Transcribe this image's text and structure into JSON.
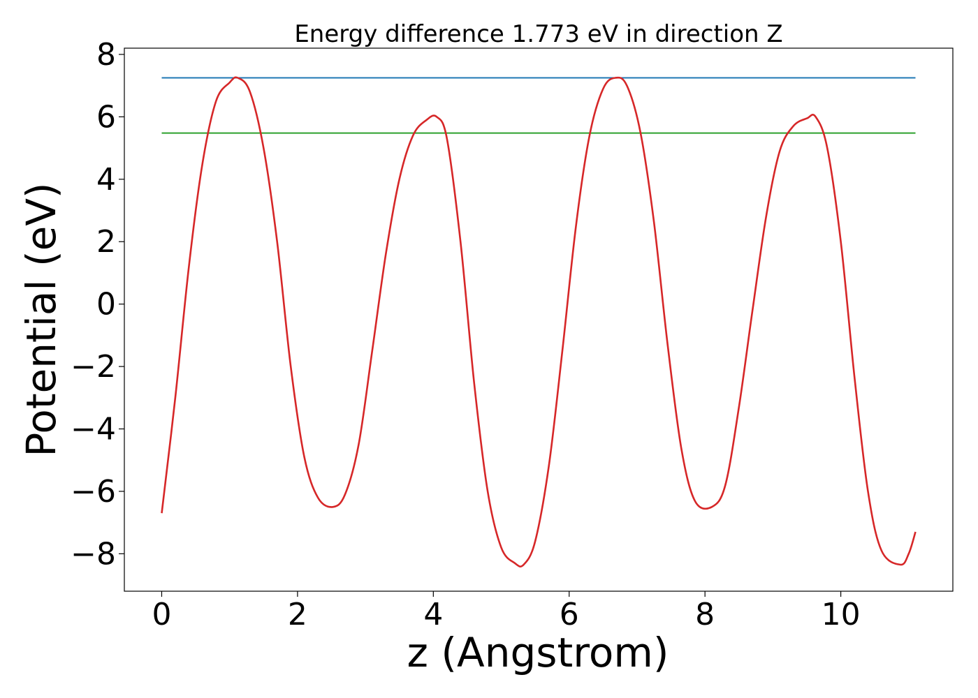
{
  "chart_data": {
    "type": "line",
    "title": "Energy difference 1.773 eV in direction Z",
    "xlabel": "z (Angstrom)",
    "ylabel": "Potential (eV)",
    "xlim": [
      -0.55,
      11.65
    ],
    "ylim": [
      -9.2,
      8.2
    ],
    "xticks": [
      0,
      2,
      4,
      6,
      8,
      10
    ],
    "xtick_labels": [
      "0",
      "2",
      "4",
      "6",
      "8",
      "10"
    ],
    "yticks": [
      -8,
      -6,
      -4,
      -2,
      0,
      2,
      4,
      6,
      8
    ],
    "ytick_labels": [
      "−8",
      "−6",
      "−4",
      "−2",
      "0",
      "2",
      "4",
      "6",
      "8"
    ],
    "grid": false,
    "legend": false,
    "series": [
      {
        "color": "#1f77b4",
        "x": [
          0,
          11.1
        ],
        "y": [
          7.25,
          7.25
        ]
      },
      {
        "color": "#2ca02c",
        "x": [
          0,
          11.1
        ],
        "y": [
          5.48,
          5.48
        ]
      },
      {
        "color": "#d62728",
        "x": [
          0,
          0.2,
          0.4,
          0.6,
          0.8,
          1.0,
          1.12,
          1.3,
          1.5,
          1.7,
          1.9,
          2.1,
          2.3,
          2.52,
          2.7,
          2.9,
          3.1,
          3.3,
          3.5,
          3.7,
          3.9,
          4.05,
          4.2,
          4.4,
          4.6,
          4.8,
          5.0,
          5.2,
          5.33,
          5.5,
          5.7,
          5.9,
          6.1,
          6.3,
          6.5,
          6.68,
          6.85,
          7.05,
          7.25,
          7.45,
          7.65,
          7.85,
          8.1,
          8.3,
          8.5,
          8.7,
          8.9,
          9.1,
          9.3,
          9.5,
          9.63,
          9.8,
          10.0,
          10.2,
          10.4,
          10.6,
          10.88,
          11.0,
          11.1
        ],
        "y": [
          -6.7,
          -3.0,
          1.2,
          4.5,
          6.5,
          7.1,
          7.25,
          6.8,
          5.0,
          2.0,
          -2.0,
          -4.9,
          -6.2,
          -6.5,
          -6.1,
          -4.5,
          -1.5,
          1.6,
          4.0,
          5.4,
          5.9,
          6.0,
          5.3,
          2.0,
          -2.5,
          -6.0,
          -7.8,
          -8.3,
          -8.35,
          -7.6,
          -5.2,
          -1.5,
          2.5,
          5.4,
          6.9,
          7.25,
          7.0,
          5.5,
          2.6,
          -1.3,
          -4.6,
          -6.3,
          -6.5,
          -5.8,
          -3.3,
          -0.2,
          2.8,
          4.9,
          5.7,
          5.95,
          6.0,
          5.0,
          2.0,
          -2.3,
          -6.0,
          -7.9,
          -8.35,
          -8.0,
          -7.3
        ]
      }
    ]
  }
}
